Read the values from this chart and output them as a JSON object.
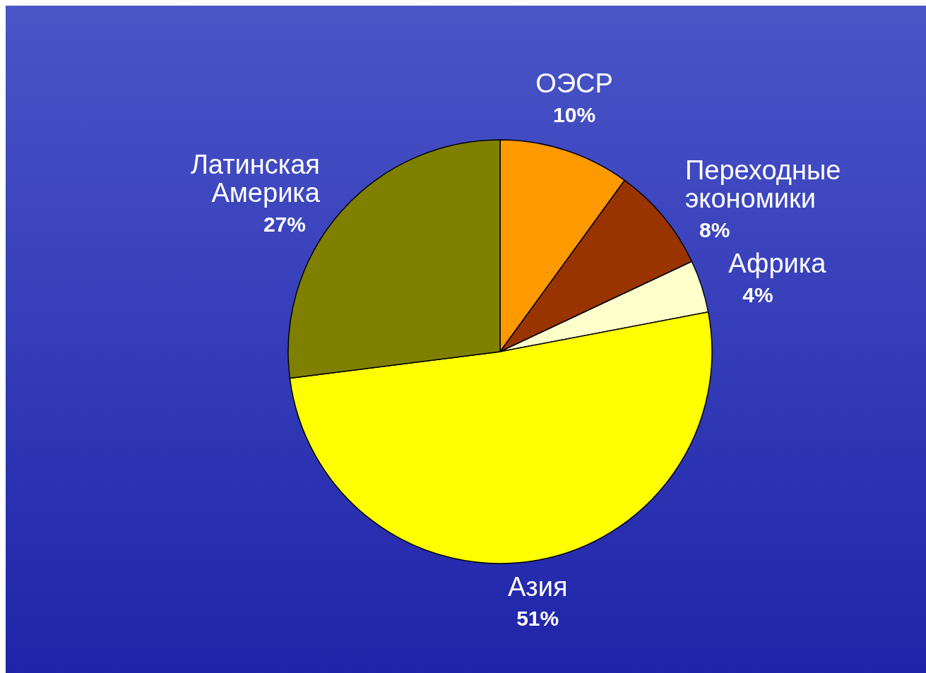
{
  "chart_data": {
    "type": "pie",
    "categories": [
      "ОЭСР",
      "Переходные экономики",
      "Африка",
      "Азия",
      "Латинская Америка"
    ],
    "values": [
      10,
      8,
      4,
      51,
      27
    ],
    "colors": [
      "#ff9900",
      "#993300",
      "#ffffcc",
      "#ffff00",
      "#808000"
    ],
    "value_labels": [
      "10%",
      "8%",
      "4%",
      "51%",
      "27%"
    ],
    "legend": false
  }
}
